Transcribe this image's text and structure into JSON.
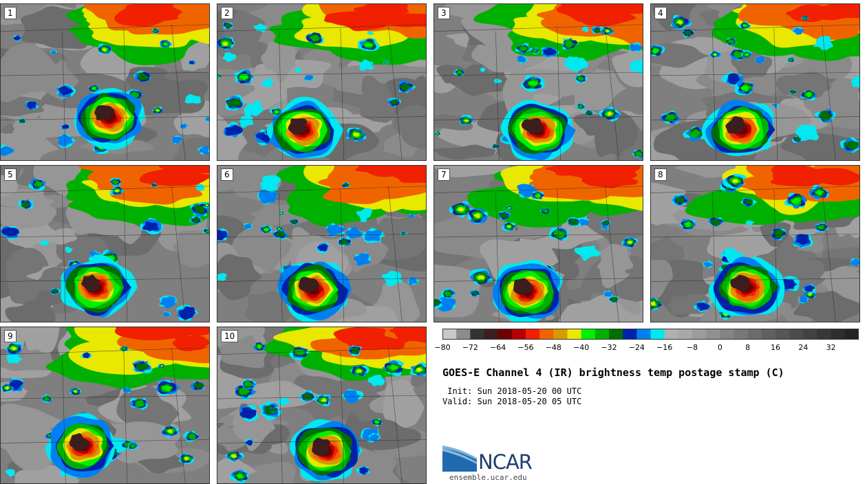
{
  "panels": [
    {
      "label": "1"
    },
    {
      "label": "2"
    },
    {
      "label": "3"
    },
    {
      "label": "4"
    },
    {
      "label": "5"
    },
    {
      "label": "6"
    },
    {
      "label": "7"
    },
    {
      "label": "8"
    },
    {
      "label": "9"
    },
    {
      "label": "10"
    }
  ],
  "colorbar": {
    "colors": [
      "#c8c8c8",
      "#8c8c8c",
      "#333333",
      "#3c1e1e",
      "#6e0000",
      "#b40000",
      "#f02000",
      "#f06400",
      "#d89a00",
      "#e8e800",
      "#00f000",
      "#00b000",
      "#007000",
      "#0022aa",
      "#0080f0",
      "#00e8f0",
      "#b0b0b0",
      "#a8a8a8",
      "#9c9c9c",
      "#909090",
      "#848484",
      "#787878",
      "#6c6c6c",
      "#606060",
      "#565656",
      "#4c4c4c",
      "#424242",
      "#383838",
      "#2e2e2e",
      "#242424"
    ],
    "ticks": [
      "−80",
      "−72",
      "−64",
      "−56",
      "−48",
      "−40",
      "−32",
      "−24",
      "−16",
      "−8",
      "0",
      "8",
      "16",
      "24",
      "32"
    ]
  },
  "title": "GOES-E Channel 4 (IR) brightness temp postage stamp (C)",
  "init": " Init: Sun 2018-05-20 00 UTC",
  "valid": "Valid: Sun 2018-05-20 05 UTC",
  "logo": {
    "text": "NCAR",
    "website": "ensemble.ucar.edu"
  }
}
